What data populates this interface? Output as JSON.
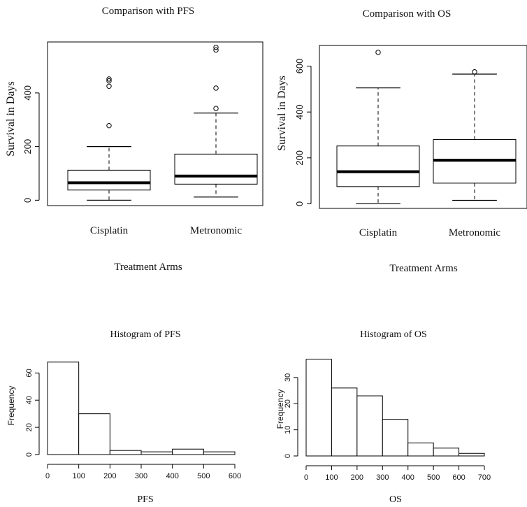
{
  "chart_data": [
    {
      "type": "boxplot",
      "title": "Comparison with PFS",
      "xlabel": "Treatment Arms",
      "ylabel": "Survival in Days",
      "ylim": [
        -20,
        590
      ],
      "yticks": [
        0,
        200,
        400
      ],
      "categories": [
        "Cisplatin",
        "Metronomic"
      ],
      "boxes": [
        {
          "category": "Cisplatin",
          "whisker_low": 0,
          "q1": 38,
          "median": 65,
          "q3": 112,
          "whisker_high": 200,
          "outliers": [
            278,
            425,
            445,
            452
          ]
        },
        {
          "category": "Metronomic",
          "whisker_low": 12,
          "q1": 60,
          "median": 90,
          "q3": 172,
          "whisker_high": 325,
          "outliers": [
            342,
            418,
            560,
            570
          ]
        }
      ]
    },
    {
      "type": "boxplot",
      "title": "Comparison with OS",
      "xlabel": "Treatment Arms",
      "ylabel": "Survival in Days",
      "ylim": [
        -20,
        690
      ],
      "yticks": [
        0,
        200,
        400,
        600
      ],
      "categories": [
        "Cisplatin",
        "Metronomic"
      ],
      "boxes": [
        {
          "category": "Cisplatin",
          "whisker_low": 0,
          "q1": 75,
          "median": 140,
          "q3": 252,
          "whisker_high": 505,
          "outliers": [
            660
          ]
        },
        {
          "category": "Metronomic",
          "whisker_low": 15,
          "q1": 90,
          "median": 190,
          "q3": 280,
          "whisker_high": 565,
          "outliers": [
            575
          ]
        }
      ]
    },
    {
      "type": "histogram",
      "title": "Histogram of PFS",
      "xlabel": "PFS",
      "ylabel": "Frequency",
      "xlim": [
        0,
        600
      ],
      "ylim": [
        0,
        72
      ],
      "xticks": [
        0,
        100,
        200,
        300,
        400,
        500,
        600
      ],
      "yticks": [
        0,
        20,
        40,
        60
      ],
      "bins": [
        {
          "from": 0,
          "to": 100,
          "count": 68
        },
        {
          "from": 100,
          "to": 200,
          "count": 30
        },
        {
          "from": 200,
          "to": 300,
          "count": 3
        },
        {
          "from": 300,
          "to": 400,
          "count": 2
        },
        {
          "from": 400,
          "to": 500,
          "count": 4
        },
        {
          "from": 500,
          "to": 600,
          "count": 2
        }
      ]
    },
    {
      "type": "histogram",
      "title": "Histogram of OS",
      "xlabel": "OS",
      "ylabel": "Frequency",
      "xlim": [
        0,
        700
      ],
      "ylim": [
        0,
        38
      ],
      "xticks": [
        0,
        100,
        200,
        300,
        400,
        500,
        600,
        700
      ],
      "yticks": [
        0,
        10,
        20,
        30
      ],
      "bins": [
        {
          "from": 0,
          "to": 100,
          "count": 37
        },
        {
          "from": 100,
          "to": 200,
          "count": 26
        },
        {
          "from": 200,
          "to": 300,
          "count": 23
        },
        {
          "from": 300,
          "to": 400,
          "count": 14
        },
        {
          "from": 400,
          "to": 500,
          "count": 5
        },
        {
          "from": 500,
          "to": 600,
          "count": 3
        },
        {
          "from": 600,
          "to": 700,
          "count": 1
        }
      ]
    }
  ]
}
